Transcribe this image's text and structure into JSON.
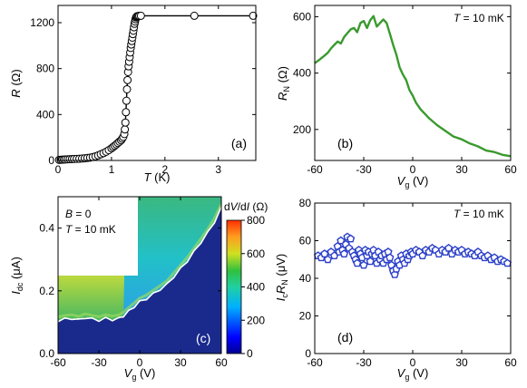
{
  "colors": {
    "panel_b_line": "#3a9a2e",
    "panel_d_marker": "#2a3fc8",
    "panel_a_marker_fill": "#ffffff",
    "panel_a_line": "#000000",
    "panel_c_contour": "#ffffff",
    "colormap": "jet"
  },
  "chart_data": [
    {
      "id": "a",
      "type": "line",
      "panel_label": "(a)",
      "xlabel": "T (K)",
      "ylabel": "R (Ω)",
      "xlim": [
        0,
        3.7
      ],
      "ylim": [
        0,
        1350
      ],
      "xticks": [
        0,
        1,
        2,
        3
      ],
      "yticks": [
        0,
        400,
        800,
        1200
      ],
      "annotation": "",
      "series": [
        {
          "x": [
            0.02,
            0.05,
            0.08,
            0.11,
            0.14,
            0.18,
            0.22,
            0.26,
            0.3,
            0.35,
            0.4,
            0.45,
            0.5,
            0.55,
            0.6,
            0.65,
            0.7,
            0.75,
            0.8,
            0.85,
            0.9,
            0.95,
            1.0,
            1.03,
            1.06,
            1.09,
            1.12,
            1.15,
            1.18,
            1.2,
            1.22,
            1.24,
            1.25,
            1.26,
            1.27,
            1.28,
            1.29,
            1.3,
            1.31,
            1.32,
            1.33,
            1.34,
            1.35,
            1.36,
            1.37,
            1.38,
            1.39,
            1.4,
            1.41,
            1.42,
            1.43,
            1.44,
            1.45,
            1.46,
            1.47,
            1.48,
            1.5,
            1.52,
            1.55,
            2.55,
            3.65
          ],
          "y": [
            5,
            6,
            7,
            8,
            9,
            10,
            11,
            12,
            13,
            14,
            15,
            17,
            19,
            22,
            25,
            30,
            36,
            44,
            54,
            64,
            76,
            90,
            106,
            117,
            128,
            140,
            152,
            164,
            176,
            190,
            205,
            230,
            270,
            330,
            420,
            520,
            620,
            700,
            770,
            820,
            860,
            900,
            940,
            980,
            1010,
            1040,
            1070,
            1100,
            1130,
            1160,
            1190,
            1210,
            1230,
            1245,
            1252,
            1256,
            1258,
            1259,
            1260,
            1260,
            1260
          ]
        }
      ]
    },
    {
      "id": "b",
      "type": "line",
      "panel_label": "(b)",
      "xlabel": "Vg (V)",
      "ylabel": "RN (Ω)",
      "xlim": [
        -60,
        60
      ],
      "ylim": [
        90,
        640
      ],
      "xticks": [
        -60,
        -30,
        0,
        30,
        60
      ],
      "yticks": [
        200,
        400,
        600
      ],
      "annotation": "T = 10 mK",
      "series": [
        {
          "x": [
            -60,
            -57,
            -54,
            -52,
            -50,
            -48,
            -46,
            -44,
            -42,
            -40,
            -38,
            -36,
            -34,
            -32,
            -30,
            -28,
            -26,
            -24,
            -22,
            -20,
            -18,
            -16,
            -14,
            -12,
            -10,
            -8,
            -6,
            -4,
            -2,
            0,
            2,
            5,
            8,
            10,
            15,
            20,
            25,
            30,
            35,
            40,
            45,
            50,
            55,
            60
          ],
          "y": [
            435,
            448,
            462,
            472,
            488,
            500,
            512,
            505,
            528,
            542,
            555,
            560,
            545,
            578,
            585,
            560,
            588,
            602,
            565,
            578,
            590,
            578,
            540,
            500,
            465,
            420,
            395,
            375,
            340,
            320,
            295,
            270,
            252,
            240,
            215,
            195,
            175,
            165,
            150,
            140,
            125,
            120,
            110,
            105
          ]
        }
      ]
    },
    {
      "id": "c",
      "type": "heatmap",
      "panel_label": "(c)",
      "xlabel": "Vg (V)",
      "ylabel": "Idc (μA)",
      "xlim": [
        -60,
        60
      ],
      "ylim": [
        0,
        0.5
      ],
      "xticks": [
        -60,
        -30,
        0,
        30,
        60
      ],
      "yticks": [
        0.0,
        0.2,
        0.4
      ],
      "annotation_lines": [
        "B = 0",
        "T = 10 mK"
      ],
      "colorbar": {
        "label": "dV/dI (Ω)",
        "range": [
          0,
          800
        ],
        "ticks": [
          0,
          200,
          400,
          600,
          800
        ]
      },
      "switching_current": {
        "x": [
          -60,
          -55,
          -50,
          -45,
          -40,
          -35,
          -30,
          -25,
          -20,
          -15,
          -12,
          -8,
          -4,
          0,
          5,
          10,
          15,
          20,
          25,
          30,
          35,
          40,
          45,
          50,
          55,
          60
        ],
        "y": [
          0.105,
          0.11,
          0.112,
          0.107,
          0.115,
          0.11,
          0.106,
          0.112,
          0.108,
          0.112,
          0.12,
          0.135,
          0.15,
          0.165,
          0.175,
          0.19,
          0.205,
          0.22,
          0.245,
          0.27,
          0.295,
          0.325,
          0.355,
          0.385,
          0.42,
          0.465
        ]
      }
    },
    {
      "id": "d",
      "type": "scatter",
      "panel_label": "(d)",
      "xlabel": "Vg (V)",
      "ylabel": "IcRN (μV)",
      "xlim": [
        -60,
        60
      ],
      "ylim": [
        0,
        80
      ],
      "xticks": [
        -60,
        -30,
        0,
        30,
        60
      ],
      "yticks": [
        0,
        20,
        40,
        60,
        80
      ],
      "annotation": "T = 10 mK",
      "series": [
        {
          "x": [
            -58,
            -56,
            -54,
            -52,
            -50,
            -48,
            -46,
            -45,
            -44,
            -43,
            -42,
            -41,
            -40,
            -39,
            -38,
            -37,
            -36,
            -35,
            -34,
            -33,
            -32,
            -31,
            -30,
            -29,
            -28,
            -27,
            -26,
            -25,
            -24,
            -23,
            -22,
            -21,
            -20,
            -19,
            -18,
            -17,
            -16,
            -15,
            -14,
            -13,
            -12,
            -11,
            -10,
            -9,
            -8,
            -7,
            -6,
            -5,
            -4,
            -3,
            -2,
            -1,
            0,
            2,
            4,
            6,
            8,
            10,
            12,
            14,
            16,
            18,
            20,
            22,
            24,
            26,
            28,
            30,
            32,
            34,
            36,
            38,
            40,
            42,
            44,
            46,
            48,
            50,
            52,
            54,
            56,
            58
          ],
          "y": [
            52,
            51,
            53,
            50,
            54,
            52,
            57,
            54,
            60,
            55,
            53,
            58,
            62,
            56,
            61,
            54,
            52,
            50,
            48,
            55,
            53,
            51,
            47,
            55,
            52,
            54,
            49,
            53,
            55,
            52,
            48,
            54,
            50,
            52,
            48,
            53,
            50,
            54,
            51,
            47,
            44,
            42,
            45,
            49,
            47,
            52,
            50,
            48,
            53,
            50,
            52,
            54,
            53,
            55,
            54,
            52,
            55,
            54,
            56,
            55,
            53,
            55,
            54,
            56,
            53,
            55,
            54,
            55,
            53,
            54,
            53,
            52,
            54,
            52,
            51,
            52,
            50,
            51,
            49,
            50,
            49,
            48
          ]
        }
      ]
    }
  ]
}
